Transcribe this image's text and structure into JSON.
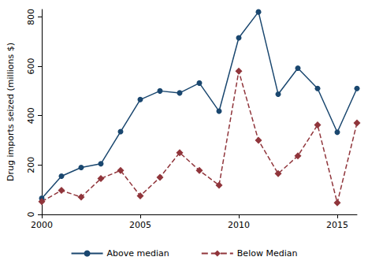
{
  "chart_data": {
    "type": "line",
    "y_label": "Drug imports seized (millions $)",
    "x": [
      2000,
      2001,
      2002,
      2003,
      2004,
      2005,
      2006,
      2007,
      2008,
      2009,
      2010,
      2011,
      2012,
      2013,
      2014,
      2015,
      2016
    ],
    "series": [
      {
        "name": "Above median",
        "color": "#1a476f",
        "marker": "circle",
        "line_style": "solid",
        "values": [
          65,
          155,
          190,
          205,
          335,
          465,
          500,
          492,
          532,
          418,
          715,
          820,
          487,
          592,
          510,
          333,
          510
        ]
      },
      {
        "name": "Below Median",
        "color": "#90353b",
        "marker": "diamond",
        "line_style": "dashed",
        "values": [
          52,
          97,
          70,
          145,
          178,
          75,
          150,
          250,
          178,
          118,
          580,
          300,
          165,
          237,
          362,
          47,
          370
        ]
      }
    ],
    "xlim": [
      2000,
      2016
    ],
    "xticks": [
      2000,
      2005,
      2010,
      2015
    ],
    "ylim": [
      0,
      830
    ],
    "yticks": [
      0,
      200,
      400,
      600,
      800
    ],
    "grid": false,
    "legend": "bottom"
  }
}
